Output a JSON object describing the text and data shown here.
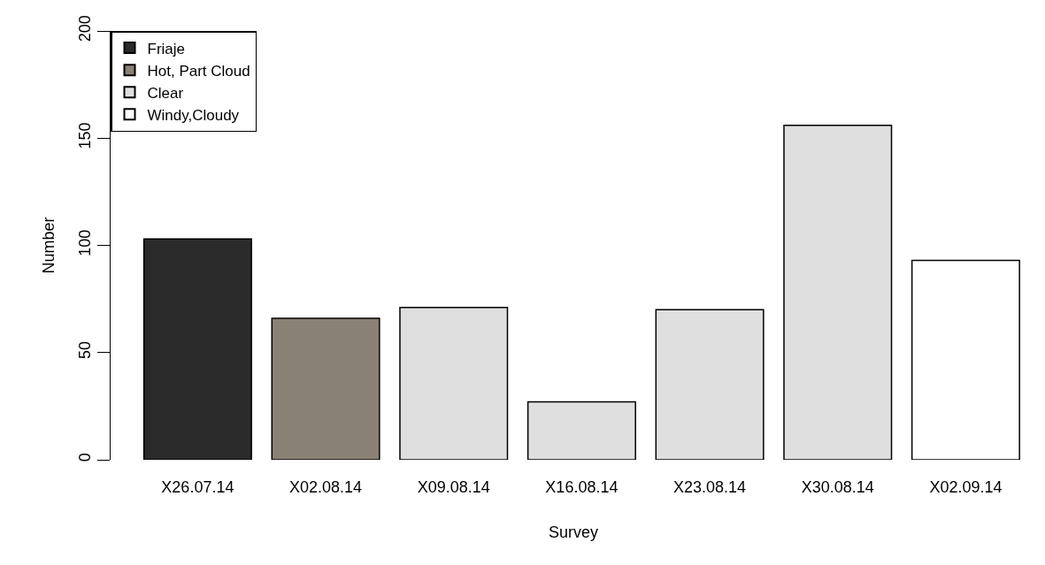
{
  "chart_data": {
    "type": "bar",
    "xlabel": "Survey",
    "ylabel": "Number",
    "categories": [
      "X26.07.14",
      "X02.08.14",
      "X09.08.14",
      "X16.08.14",
      "X23.08.14",
      "X30.08.14",
      "X02.09.14"
    ],
    "series": [
      {
        "name": "Friaje",
        "color": "#2b2b2b",
        "values": [
          103,
          null,
          null,
          null,
          null,
          null,
          null
        ]
      },
      {
        "name": "Hot, Part Cloud",
        "color": "#8a8176",
        "values": [
          null,
          66,
          null,
          null,
          null,
          null,
          null
        ]
      },
      {
        "name": "Clear",
        "color": "#dfdfdf",
        "values": [
          null,
          null,
          71,
          27,
          70,
          156,
          null
        ]
      },
      {
        "name": "Windy,Cloudy",
        "color": "#ffffff",
        "values": [
          null,
          null,
          null,
          null,
          null,
          null,
          93
        ]
      }
    ],
    "ylim": [
      0,
      200
    ],
    "yticks": [
      0,
      50,
      100,
      150,
      200
    ],
    "grid": false,
    "legend": "top left"
  }
}
